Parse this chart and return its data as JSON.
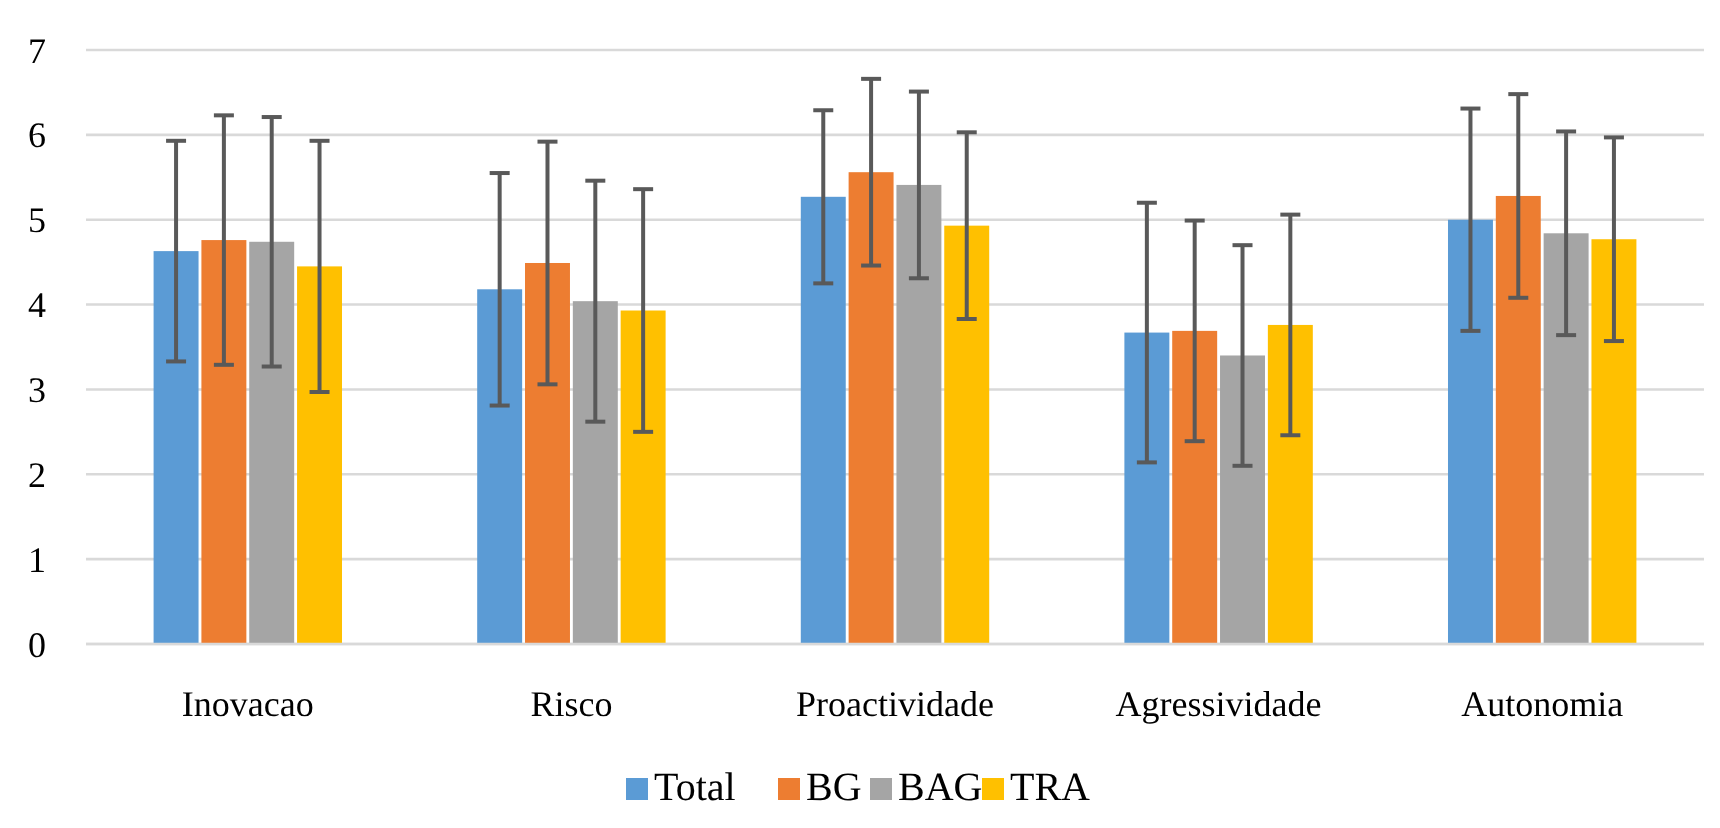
{
  "chart_data": {
    "type": "bar",
    "categories": [
      "Inovacao",
      "Risco",
      "Proactividade",
      "Agressividade",
      "Autonomia"
    ],
    "series": [
      {
        "name": "Total",
        "color": "#5b9bd5",
        "values": [
          4.63,
          4.18,
          5.27,
          3.67,
          5.0
        ],
        "errors": [
          1.3,
          1.37,
          1.02,
          1.53,
          1.31
        ]
      },
      {
        "name": "BG",
        "color": "#ed7d31",
        "values": [
          4.76,
          4.49,
          5.56,
          3.69,
          5.28
        ],
        "errors": [
          1.47,
          1.43,
          1.1,
          1.3,
          1.2
        ]
      },
      {
        "name": "BAG",
        "color": "#a5a5a5",
        "values": [
          4.74,
          4.04,
          5.41,
          3.4,
          4.84
        ],
        "errors": [
          1.47,
          1.42,
          1.1,
          1.3,
          1.2
        ]
      },
      {
        "name": "TRA",
        "color": "#ffc000",
        "values": [
          4.45,
          3.93,
          4.93,
          3.76,
          4.77
        ],
        "errors": [
          1.48,
          1.43,
          1.1,
          1.3,
          1.2
        ]
      }
    ],
    "ylim": [
      0,
      7
    ],
    "yticks": [
      0,
      1,
      2,
      3,
      4,
      5,
      6,
      7
    ],
    "grid": "y",
    "legend": "bottom"
  }
}
